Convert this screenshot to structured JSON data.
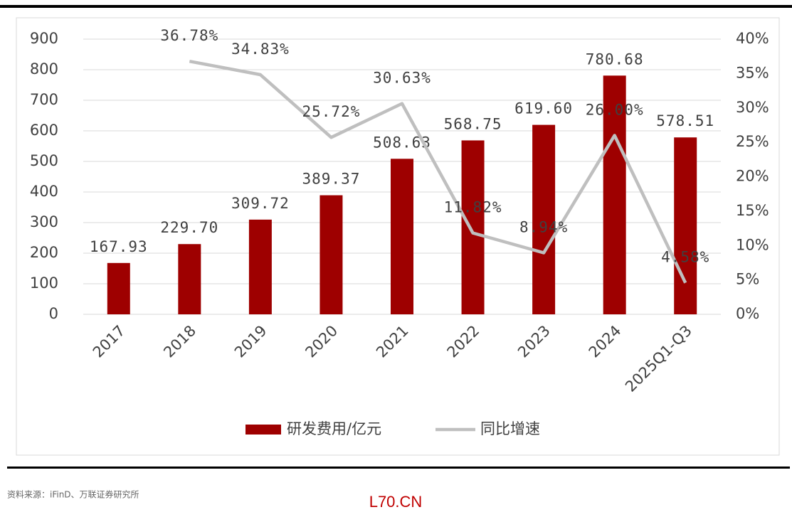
{
  "chart_data": {
    "type": "bar",
    "categories": [
      "2017",
      "2018",
      "2019",
      "2020",
      "2021",
      "2022",
      "2023",
      "2024",
      "2025Q1-Q3"
    ],
    "series": [
      {
        "name": "研发费用/亿元",
        "type": "bar",
        "color": "#9e0000",
        "values": [
          167.93,
          229.7,
          309.72,
          389.37,
          508.63,
          568.75,
          619.6,
          780.68,
          578.51
        ],
        "value_labels": [
          "167.93",
          "229.70",
          "309.72",
          "389.37",
          "508.63",
          "568.75",
          "619.60",
          "780.68",
          "578.51"
        ]
      },
      {
        "name": "同比增速",
        "type": "line",
        "axis": "y2",
        "color": "#bfbfbf",
        "values": [
          null,
          36.78,
          34.83,
          25.72,
          30.63,
          11.82,
          8.94,
          26.0,
          4.58
        ],
        "value_labels": [
          null,
          "36.78%",
          "34.83%",
          "25.72%",
          "30.63%",
          "11.82%",
          "8.94%",
          "26.00%",
          "4.58%"
        ]
      }
    ],
    "ylim": [
      0,
      900
    ],
    "yticks": [
      0,
      100,
      200,
      300,
      400,
      500,
      600,
      700,
      800,
      900
    ],
    "y2lim": [
      0,
      40
    ],
    "y2ticks": [
      {
        "value": 0,
        "label": "0%"
      },
      {
        "value": 5,
        "label": "5%"
      },
      {
        "value": 10,
        "label": "10%"
      },
      {
        "value": 15,
        "label": "15%"
      },
      {
        "value": 20,
        "label": "20%"
      },
      {
        "value": 25,
        "label": "25%"
      },
      {
        "value": 30,
        "label": "30%"
      },
      {
        "value": 35,
        "label": "35%"
      },
      {
        "value": 40,
        "label": "40%"
      }
    ],
    "grid": true,
    "legend": "bottom"
  },
  "source": "资料来源：iFinD、万联证券研究所",
  "watermark": "L70.CN"
}
